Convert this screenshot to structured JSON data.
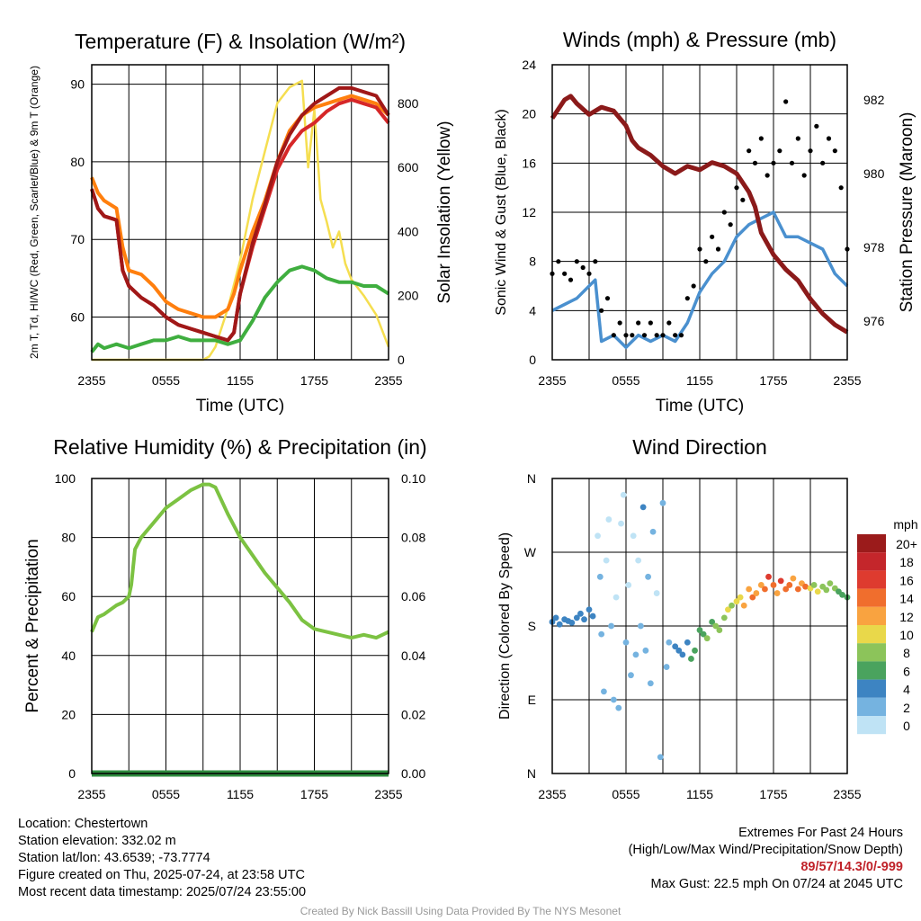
{
  "chart_data": [
    {
      "type": "line",
      "title": "Temperature (F) & Insolation (W/m²)",
      "xlabel": "Time (UTC)",
      "ylabel": "2m T, Td, HI/WC (Red, Green, Scarlet/Blue) & 9m T (Orange)",
      "y2label": "Solar Insolation (Yellow)",
      "x_ticks": [
        "2355",
        "0555",
        "1155",
        "1755",
        "2355"
      ],
      "y_ticks": [
        "60",
        "70",
        "80",
        "90"
      ],
      "y2_ticks": [
        "0",
        "200",
        "400",
        "600",
        "800"
      ],
      "ylim": [
        54.5,
        92.5
      ],
      "y2lim": [
        0,
        920
      ],
      "series": [
        {
          "color": "#d62728",
          "x": [
            0,
            0.5,
            1,
            2,
            2.5,
            3,
            4,
            5,
            6,
            7,
            8,
            9,
            10,
            11,
            11.5,
            12,
            13,
            14,
            15,
            16,
            17,
            18,
            19,
            20,
            21,
            22,
            23,
            24
          ],
          "values": [
            76.5,
            74,
            73,
            72.5,
            66,
            64,
            62.5,
            61.5,
            60,
            59,
            58.5,
            58,
            57.5,
            57,
            58,
            63,
            69,
            74,
            79,
            82,
            84,
            85,
            86.5,
            87.5,
            88,
            87.5,
            87,
            85
          ]
        },
        {
          "color": "#ff7f0e",
          "x": [
            0,
            0.5,
            1,
            2,
            2.5,
            3,
            4,
            5,
            6,
            7,
            8,
            9,
            10,
            11,
            11.5,
            12,
            13,
            14,
            15,
            16,
            17,
            18,
            19,
            20,
            21,
            22,
            23,
            24
          ],
          "values": [
            78,
            76,
            75,
            74,
            69,
            66,
            65.5,
            64,
            62,
            61,
            60.5,
            60,
            60,
            61,
            63,
            66,
            71,
            75,
            80,
            84,
            86,
            87,
            87.5,
            88,
            88.5,
            88,
            87.5,
            86
          ]
        },
        {
          "color": "#a01818",
          "x": [
            0,
            0.5,
            1,
            2,
            2.5,
            3,
            4,
            5,
            6,
            7,
            8,
            9,
            10,
            11,
            11.5,
            12,
            13,
            14,
            15,
            16,
            17,
            18,
            19,
            20,
            21,
            22,
            23,
            24
          ],
          "values": [
            76.5,
            74,
            73,
            72.5,
            66,
            64,
            62.5,
            61.5,
            60,
            59,
            58.5,
            58,
            57.5,
            57,
            58,
            63,
            69.5,
            74.5,
            80,
            83.5,
            86,
            87.5,
            88.5,
            89.5,
            89.5,
            89,
            88.5,
            86
          ]
        },
        {
          "color": "#3fae3f",
          "x": [
            0,
            0.5,
            1,
            2,
            3,
            4,
            5,
            6,
            7,
            8,
            9,
            10,
            11,
            12,
            13,
            14,
            15,
            16,
            17,
            18,
            19,
            20,
            21,
            22,
            23,
            24
          ],
          "values": [
            55.5,
            56.5,
            56,
            56.5,
            56,
            56.5,
            57,
            57,
            57.5,
            57,
            57,
            57,
            56.5,
            57,
            59.5,
            62.5,
            64.5,
            66,
            66.5,
            66,
            65,
            64.5,
            64.5,
            64,
            64,
            63
          ]
        },
        {
          "color": "#f5de50",
          "axis": "y2",
          "x": [
            0,
            1,
            2,
            3,
            4,
            5,
            6,
            7,
            8,
            9,
            9.5,
            10,
            11,
            12,
            13,
            14,
            15,
            16,
            17,
            17.5,
            18,
            18.5,
            19,
            19.5,
            20,
            20.5,
            21,
            22,
            23,
            24
          ],
          "values": [
            0,
            0,
            0,
            0,
            0,
            0,
            0,
            0,
            0,
            0,
            10,
            40,
            160,
            310,
            500,
            650,
            800,
            850,
            870,
            600,
            780,
            500,
            430,
            350,
            400,
            300,
            250,
            200,
            140,
            40
          ]
        }
      ]
    },
    {
      "type": "line",
      "title": "Winds (mph) & Pressure (mb)",
      "xlabel": "Time (UTC)",
      "ylabel": "Sonic Wind & Gust (Blue, Black)",
      "y2label": "Station Pressure (Maroon)",
      "x_ticks": [
        "2355",
        "0555",
        "1155",
        "1755",
        "2355"
      ],
      "y_ticks": [
        "0",
        "4",
        "8",
        "12",
        "16",
        "20",
        "24"
      ],
      "y2_ticks": [
        "976",
        "978",
        "980",
        "982"
      ],
      "ylim": [
        0,
        24
      ],
      "y2lim": [
        974.95,
        982.95
      ],
      "series": [
        {
          "name": "wind",
          "color": "#4a90cf",
          "x": [
            0,
            1,
            2,
            3,
            3.5,
            4,
            5,
            6,
            7,
            8,
            9,
            10,
            11,
            12,
            13,
            14,
            15,
            16,
            17,
            18,
            19,
            20,
            21,
            22,
            23,
            24
          ],
          "values": [
            4,
            4.5,
            5,
            6,
            6.5,
            1.5,
            2,
            1,
            2,
            1.5,
            2,
            1.5,
            3,
            5.5,
            7,
            8,
            10,
            11,
            11.5,
            12,
            10,
            10,
            9.5,
            9,
            7,
            6
          ]
        },
        {
          "name": "gust",
          "color": "#000000",
          "type": "scatter",
          "x": [
            0,
            0.5,
            1,
            1.5,
            2,
            2.5,
            3,
            3.5,
            4,
            4.5,
            5,
            5.5,
            6,
            6.5,
            7,
            7.5,
            8,
            8.5,
            9,
            9.5,
            10,
            10.5,
            11,
            11.5,
            12,
            12.5,
            13,
            13.5,
            14,
            14.5,
            15,
            15.5,
            16,
            16.5,
            17,
            17.5,
            18,
            18.5,
            19,
            19.5,
            20,
            20.5,
            21,
            21.5,
            22,
            22.5,
            23,
            23.5,
            24
          ],
          "values": [
            7,
            8,
            7,
            6.5,
            8,
            7.5,
            7,
            8,
            4,
            5,
            2,
            3,
            2,
            2,
            3,
            2,
            3,
            2,
            2,
            3,
            2,
            2,
            5,
            6,
            9,
            8,
            10,
            9,
            12,
            11,
            14,
            13,
            17,
            16,
            18,
            15,
            16,
            17,
            21,
            16,
            18,
            15,
            17,
            19,
            16,
            18,
            17,
            14,
            9
          ]
        },
        {
          "name": "pressure",
          "color": "#8b1a1a",
          "axis": "y2",
          "x": [
            0,
            1,
            1.5,
            2,
            3,
            4,
            5,
            6,
            6.5,
            7,
            8,
            9,
            10,
            11,
            12,
            13,
            14,
            15,
            16,
            16.5,
            17,
            18,
            19,
            20,
            21,
            22,
            23,
            24
          ],
          "values": [
            981.5,
            982.0,
            982.1,
            981.9,
            981.6,
            981.8,
            981.7,
            981.3,
            980.9,
            980.7,
            980.5,
            980.2,
            980.0,
            980.2,
            980.1,
            980.3,
            980.2,
            980.0,
            979.5,
            979.1,
            978.4,
            977.8,
            977.4,
            977.1,
            976.6,
            976.2,
            975.9,
            975.7
          ]
        }
      ]
    },
    {
      "type": "line",
      "title": "Relative Humidity (%) & Precipitation (in)",
      "xlabel": "",
      "ylabel": "Percent & Precipitation",
      "x_ticks": [
        "2355",
        "0555",
        "1155",
        "1755",
        "2355"
      ],
      "y_ticks": [
        "0",
        "20",
        "40",
        "60",
        "80",
        "100"
      ],
      "y2_ticks": [
        "0.00",
        "0.02",
        "0.04",
        "0.06",
        "0.08",
        "0.10"
      ],
      "ylim": [
        0,
        100
      ],
      "y2lim": [
        0,
        0.1
      ],
      "series": [
        {
          "name": "rh",
          "color": "#7cc242",
          "x": [
            0,
            0.5,
            1,
            2,
            2.5,
            3,
            3.2,
            3.5,
            4,
            5,
            6,
            7,
            8,
            9,
            9.5,
            10,
            11,
            12,
            13,
            14,
            15,
            16,
            17,
            18,
            19,
            20,
            21,
            22,
            23,
            24
          ],
          "values": [
            48,
            53,
            54,
            57,
            58,
            60,
            64,
            76,
            80,
            85,
            90,
            93,
            96,
            98,
            98,
            97,
            88,
            80,
            74,
            68,
            63,
            58,
            52,
            49,
            48,
            47,
            46,
            47,
            46,
            48
          ]
        },
        {
          "name": "precip",
          "color": "#2e8b3e",
          "axis": "y2",
          "x": [
            0,
            24
          ],
          "values": [
            0,
            0
          ]
        }
      ]
    },
    {
      "type": "scatter",
      "title": "Wind Direction",
      "ylabel": "Direction (Colored By Speed)",
      "x_ticks": [
        "2355",
        "0555",
        "1155",
        "1755",
        "2355"
      ],
      "y_ticks": [
        "N",
        "E",
        "S",
        "W",
        "N"
      ],
      "ylim": [
        0,
        360
      ],
      "legend": {
        "title": "mph",
        "labels": [
          "20+",
          "18",
          "16",
          "14",
          "12",
          "10",
          "8",
          "6",
          "4",
          "2",
          "0"
        ],
        "colors": [
          "#9b1b1b",
          "#c4262b",
          "#de3b2f",
          "#f06e2d",
          "#f9a340",
          "#e9d84a",
          "#8cc45a",
          "#4aa35e",
          "#3d84c2",
          "#75b3e0",
          "#bfe3f5"
        ]
      },
      "points": [
        [
          0,
          185,
          4
        ],
        [
          0.3,
          190,
          4
        ],
        [
          0.6,
          182,
          4
        ],
        [
          1,
          188,
          3
        ],
        [
          1.3,
          186,
          4
        ],
        [
          1.6,
          184,
          4
        ],
        [
          2,
          190,
          4
        ],
        [
          2.3,
          195,
          3
        ],
        [
          2.6,
          188,
          4
        ],
        [
          3,
          200,
          4
        ],
        [
          3.3,
          192,
          4
        ],
        [
          3.7,
          290,
          0
        ],
        [
          3.9,
          240,
          1
        ],
        [
          4,
          170,
          1
        ],
        [
          4.2,
          100,
          1
        ],
        [
          4.4,
          260,
          0
        ],
        [
          4.6,
          310,
          0
        ],
        [
          4.8,
          180,
          1
        ],
        [
          5,
          90,
          1
        ],
        [
          5.2,
          215,
          0
        ],
        [
          5.4,
          80,
          1
        ],
        [
          5.6,
          305,
          0
        ],
        [
          5.8,
          340,
          0
        ],
        [
          6,
          160,
          1
        ],
        [
          6.2,
          230,
          0
        ],
        [
          6.4,
          120,
          1
        ],
        [
          6.6,
          290,
          0
        ],
        [
          6.8,
          145,
          1
        ],
        [
          7,
          260,
          0
        ],
        [
          7.2,
          180,
          1
        ],
        [
          7.4,
          325,
          3
        ],
        [
          7.6,
          150,
          2
        ],
        [
          7.8,
          240,
          1
        ],
        [
          8,
          110,
          1
        ],
        [
          8.2,
          295,
          2
        ],
        [
          8.5,
          220,
          0
        ],
        [
          8.8,
          20,
          1
        ],
        [
          9,
          330,
          1
        ],
        [
          9.3,
          130,
          1
        ],
        [
          9.5,
          160,
          2
        ],
        [
          10,
          155,
          4
        ],
        [
          10.3,
          150,
          4
        ],
        [
          10.6,
          145,
          3
        ],
        [
          11,
          160,
          4
        ],
        [
          11.3,
          140,
          5
        ],
        [
          11.6,
          150,
          6
        ],
        [
          12,
          175,
          6
        ],
        [
          12.3,
          170,
          6
        ],
        [
          12.6,
          165,
          7
        ],
        [
          13,
          185,
          6
        ],
        [
          13.3,
          180,
          7
        ],
        [
          13.6,
          175,
          7
        ],
        [
          14,
          190,
          8
        ],
        [
          14.3,
          200,
          9
        ],
        [
          14.6,
          205,
          8
        ],
        [
          15,
          210,
          9
        ],
        [
          15.3,
          215,
          10
        ],
        [
          15.6,
          205,
          11
        ],
        [
          16,
          225,
          12
        ],
        [
          16.3,
          215,
          13
        ],
        [
          16.6,
          220,
          11
        ],
        [
          17,
          230,
          12
        ],
        [
          17.3,
          225,
          14
        ],
        [
          17.6,
          240,
          15
        ],
        [
          18,
          230,
          13
        ],
        [
          18.3,
          220,
          12
        ],
        [
          18.6,
          235,
          16
        ],
        [
          19,
          225,
          14
        ],
        [
          19.3,
          230,
          13
        ],
        [
          19.6,
          238,
          12
        ],
        [
          20,
          225,
          14
        ],
        [
          20.3,
          232,
          11
        ],
        [
          20.6,
          228,
          13
        ],
        [
          21,
          226,
          9
        ],
        [
          21.3,
          230,
          8
        ],
        [
          21.6,
          222,
          9
        ],
        [
          22,
          228,
          8
        ],
        [
          22.3,
          224,
          7
        ],
        [
          22.6,
          232,
          8
        ],
        [
          23,
          226,
          7
        ],
        [
          23.3,
          222,
          6
        ],
        [
          23.6,
          218,
          5
        ],
        [
          24,
          215,
          5
        ]
      ]
    }
  ],
  "footer": {
    "location": "Location: Chestertown",
    "elevation": "Station elevation: 332.02 m",
    "latlon": "Station lat/lon: 43.6539; -73.7774",
    "created": "Figure created on Thu, 2025-07-24, at 23:58 UTC",
    "recent": "Most recent data timestamp: 2025/07/24 23:55:00",
    "extremes_title": "Extremes For Past 24 Hours",
    "extremes_subtitle": "(High/Low/Max Wind/Precipitation/Snow Depth)",
    "extremes_values": "89/57/14.3/0/-999",
    "max_gust": "Max Gust: 22.5 mph On 07/24 at 2045 UTC",
    "credit": "Created By Nick Bassill Using Data Provided By The NYS Mesonet"
  }
}
